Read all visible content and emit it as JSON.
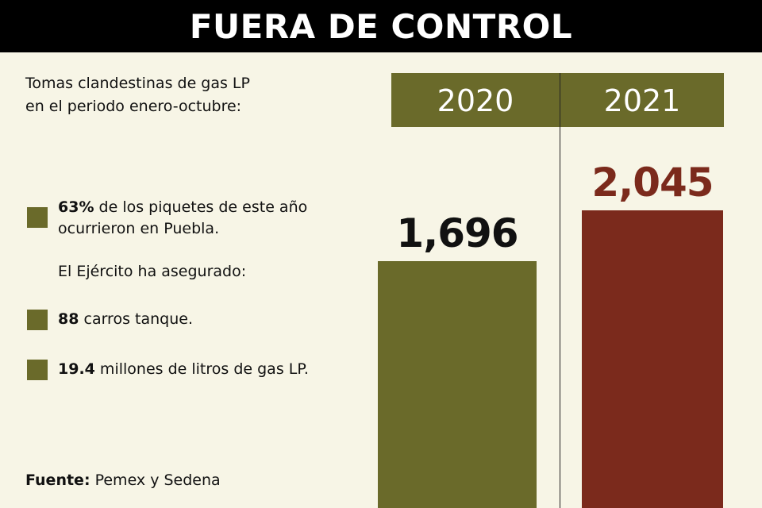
{
  "title": "FUERA DE CONTROL",
  "subtitle_line1": "Tomas clandestinas de gas LP",
  "subtitle_line2": "en el periodo enero-octubre:",
  "notes": {
    "n1_bold": "63%",
    "n1_rest_line1": " de los piquetes de este año",
    "n1_line2": "ocurrieron en Puebla.",
    "army": "El Ejército ha asegurado:",
    "n2_bold": "88",
    "n2_rest": " carros tanque.",
    "n3_bold": "19.4",
    "n3_rest": " millones de litros de gas LP."
  },
  "source_label": "Fuente:",
  "source_text": " Pemex y Sedena",
  "colors": {
    "olive": "#6a6a2a",
    "maroon": "#7b2a1c",
    "background": "#f7f5e6"
  },
  "chart_data": {
    "type": "bar",
    "categories": [
      "2020",
      "2021"
    ],
    "values": [
      1696,
      2045
    ],
    "value_labels": [
      "1,696",
      "2,045"
    ],
    "bar_colors": [
      "#6a6a2a",
      "#7b2a1c"
    ],
    "label_colors": [
      "#111111",
      "#7b2a1c"
    ],
    "title": "Tomas clandestinas de gas LP en el periodo enero-octubre:",
    "xlabel": "",
    "ylabel": "",
    "grid": false,
    "legend": "none"
  }
}
